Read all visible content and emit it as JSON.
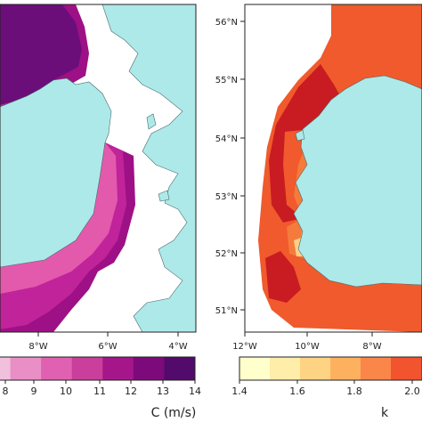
{
  "colors": {
    "land": "#aee9e9",
    "frame": "#222222",
    "cbar_speed": [
      "#f0c0dd",
      "#e98fc6",
      "#e060b2",
      "#c93f9b",
      "#a5168a",
      "#7d0a7a",
      "#520a6b"
    ],
    "cbar_k": [
      "#ffffcc",
      "#ffedaa",
      "#fed484",
      "#fdb15f",
      "#fb864a",
      "#f2542f",
      "#d8241f"
    ],
    "map_left": {
      "outer": "#9e1086",
      "mid": "#c0239a",
      "inner": "#e35aad",
      "north": "#6b0e7a"
    },
    "map_right": {
      "outer": "#f05a2c",
      "deep": "#c81c22",
      "mid": "#f47b3c",
      "near": "#fba45a",
      "shore": "#fdd08a"
    }
  },
  "left_panel": {
    "x_ticks": [
      "8°W",
      "6°W",
      "4°W"
    ]
  },
  "right_panel": {
    "x_ticks": [
      "12°W",
      "10°W",
      "8°W"
    ],
    "y_ticks": [
      "56°N",
      "55°N",
      "54°N",
      "53°N",
      "52°N",
      "51°N"
    ]
  },
  "colorbar_left": {
    "ticks": [
      "8",
      "9",
      "10",
      "11",
      "12",
      "13",
      "14"
    ],
    "label": "C (m/s)"
  },
  "colorbar_right": {
    "ticks": [
      "1.4",
      "1.6",
      "1.8",
      "2.0"
    ],
    "label": "k"
  }
}
